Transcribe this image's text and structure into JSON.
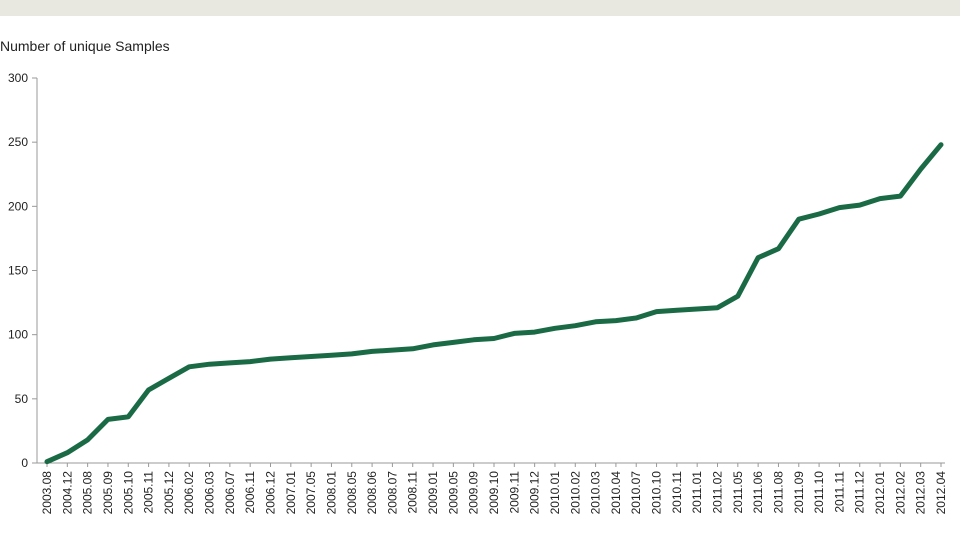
{
  "chart_data": {
    "type": "line",
    "title": "",
    "ylabel": "Number of unique Samples",
    "xlabel": "",
    "ylim": [
      0,
      300
    ],
    "yticks": [
      "0",
      "50",
      "100",
      "150",
      "200",
      "250",
      "300"
    ],
    "grid": false,
    "line_color": "#1a6b45",
    "categories": [
      "2003.08",
      "2004.12",
      "2005.08",
      "2005.09",
      "2005.10",
      "2005.11",
      "2005.12",
      "2006.02",
      "2006.03",
      "2006.07",
      "2006.11",
      "2006.12",
      "2007.01",
      "2007.05",
      "2008.01",
      "2008.05",
      "2008.06",
      "2008.07",
      "2008.11",
      "2009.01",
      "2009.05",
      "2009.09",
      "2009.10",
      "2009.11",
      "2009.12",
      "2010.01",
      "2010.02",
      "2010.03",
      "2010.04",
      "2010.07",
      "2010.10",
      "2010.11",
      "2011.01",
      "2011.02",
      "2011.05",
      "2011.06",
      "2011.08",
      "2011.09",
      "2011.10",
      "2011.11",
      "2011.12",
      "2012.01",
      "2012.02",
      "2012.03",
      "2012.04"
    ],
    "series": [
      {
        "values": [
          1,
          8,
          18,
          34,
          36,
          57,
          66,
          75,
          77,
          78,
          79,
          81,
          82,
          83,
          84,
          85,
          87,
          88,
          89,
          92,
          94,
          96,
          97,
          101,
          102,
          105,
          107,
          110,
          111,
          113,
          118,
          119,
          120,
          121,
          130,
          160,
          167,
          190,
          194,
          199,
          201,
          206,
          208,
          229,
          248
        ]
      }
    ]
  }
}
